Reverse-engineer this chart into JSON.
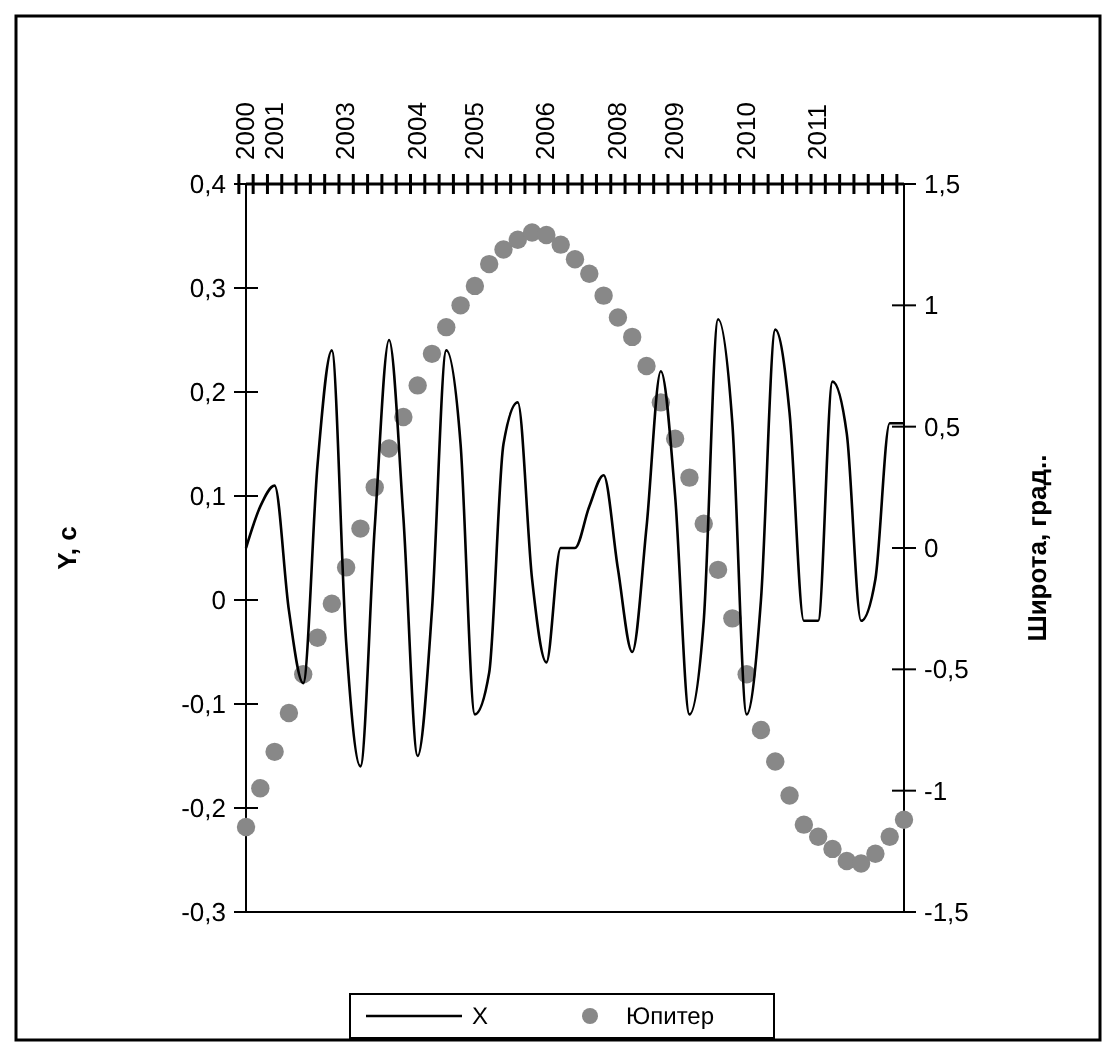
{
  "chart_data": {
    "type": "line",
    "categories": [
      "2000",
      null,
      "2001",
      null,
      null,
      null,
      null,
      "2003",
      null,
      null,
      null,
      null,
      "2004",
      null,
      null,
      null,
      "2005",
      null,
      null,
      null,
      null,
      "2006",
      null,
      null,
      null,
      null,
      "2008",
      null,
      null,
      null,
      "2009",
      null,
      null,
      null,
      null,
      "2010",
      null,
      null,
      null,
      null,
      "2011",
      null,
      null,
      null,
      null,
      null,
      null
    ],
    "series": [
      {
        "name": "X",
        "type": "line",
        "color": "#000000",
        "marker": "none",
        "values": [
          0.05,
          0.09,
          0.11,
          -0.01,
          -0.08,
          0.13,
          0.24,
          -0.04,
          -0.16,
          0.07,
          0.25,
          0.08,
          -0.15,
          -0.01,
          0.24,
          0.15,
          -0.11,
          -0.07,
          0.15,
          0.19,
          0.02,
          -0.06,
          0.05,
          0.05,
          0.09,
          0.12,
          0.03,
          -0.05,
          0.07,
          0.22,
          0.1,
          -0.11,
          -0.02,
          0.27,
          0.17,
          -0.11,
          0.0,
          0.26,
          0.18,
          -0.02,
          -0.02,
          0.21,
          0.16,
          -0.02,
          0.02,
          0.17,
          0.17
        ]
      },
      {
        "name": "Юпитер",
        "type": "scatter",
        "axis": "y2",
        "color": "#888888",
        "marker": "circle",
        "values": [
          -1.15,
          -0.99,
          -0.84,
          -0.68,
          -0.52,
          -0.37,
          -0.23,
          -0.08,
          0.08,
          0.25,
          0.41,
          0.54,
          0.67,
          0.8,
          0.91,
          1.0,
          1.08,
          1.17,
          1.23,
          1.27,
          1.3,
          1.29,
          1.25,
          1.19,
          1.13,
          1.04,
          0.95,
          0.87,
          0.75,
          0.6,
          0.45,
          0.29,
          0.1,
          -0.09,
          -0.29,
          -0.52,
          -0.75,
          -0.88,
          -1.02,
          -1.14,
          -1.19,
          -1.24,
          -1.29,
          -1.3,
          -1.26,
          -1.19,
          -1.12
        ]
      }
    ],
    "ylabel": "Y, c",
    "y2label": "Широта, град..",
    "ylim": [
      -0.3,
      0.4
    ],
    "yticks": [
      {
        "value": -0.3,
        "label": "-0,3"
      },
      {
        "value": -0.2,
        "label": "-0,2"
      },
      {
        "value": -0.1,
        "label": "-0,1"
      },
      0,
      {
        "value": 0.1,
        "label": "0,1"
      },
      {
        "value": 0.2,
        "label": "0,2"
      },
      {
        "value": 0.3,
        "label": "0,3"
      },
      {
        "value": 0.4,
        "label": "0,4"
      }
    ],
    "y2lim": [
      -1.5,
      1.5
    ],
    "y2ticks": [
      {
        "value": -1.5,
        "label": "-1,5"
      },
      -1,
      {
        "value": -0.5,
        "label": "-0,5"
      },
      0,
      {
        "value": 0.5,
        "label": "0,5"
      },
      1,
      {
        "value": 1.5,
        "label": "1,5"
      }
    ],
    "grid": false,
    "legend": "bottom"
  }
}
